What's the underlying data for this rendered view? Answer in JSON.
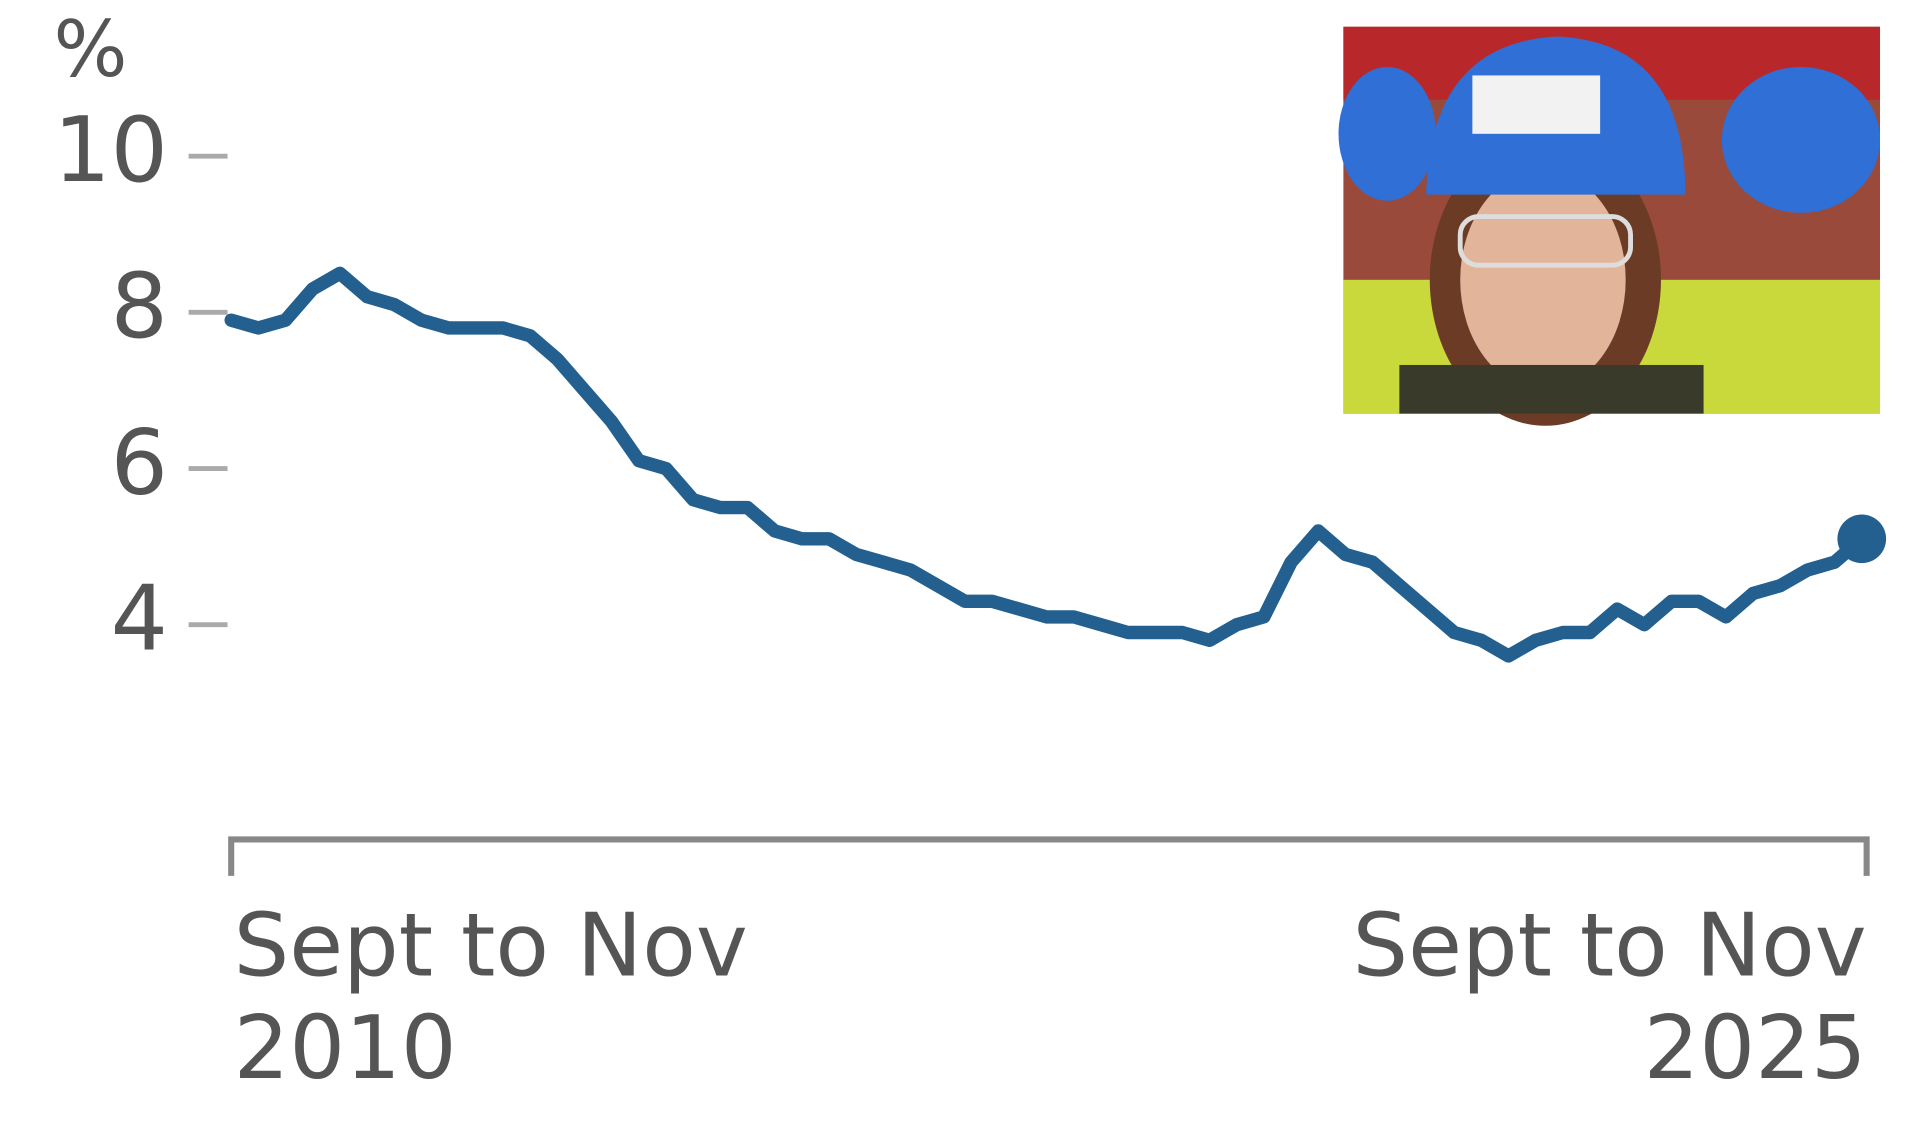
{
  "chart_data": {
    "type": "line",
    "y_label": "%",
    "categories": [
      "Sept to Nov 2010",
      null,
      null,
      null,
      null,
      null,
      null,
      null,
      null,
      null,
      null,
      null,
      null,
      null,
      null,
      null,
      null,
      null,
      null,
      null,
      null,
      null,
      null,
      null,
      null,
      null,
      null,
      null,
      null,
      null,
      null,
      null,
      null,
      null,
      null,
      null,
      null,
      null,
      null,
      null,
      null,
      null,
      null,
      null,
      null,
      null,
      null,
      null,
      null,
      null,
      null,
      null,
      null,
      null,
      null,
      null,
      null,
      null,
      null,
      null,
      "Sept to Nov 2025"
    ],
    "values": [
      7.9,
      7.8,
      7.9,
      8.3,
      8.5,
      8.2,
      8.1,
      7.9,
      7.8,
      7.8,
      7.8,
      7.7,
      7.4,
      7.0,
      6.6,
      6.1,
      6.0,
      5.6,
      5.5,
      5.5,
      5.2,
      5.1,
      5.1,
      4.9,
      4.8,
      4.7,
      4.5,
      4.3,
      4.3,
      4.2,
      4.1,
      4.1,
      4.0,
      3.9,
      3.9,
      3.9,
      3.8,
      4.0,
      4.1,
      4.8,
      5.2,
      4.9,
      4.8,
      4.5,
      4.2,
      3.9,
      3.8,
      3.6,
      3.8,
      3.9,
      3.9,
      4.2,
      4.0,
      4.3,
      4.3,
      4.1,
      4.4,
      4.5,
      4.7,
      4.8,
      5.1
    ],
    "color": "#23608f",
    "ylim": [
      1.25,
      12
    ],
    "yticks": [
      4,
      6,
      8,
      10
    ]
  }
}
